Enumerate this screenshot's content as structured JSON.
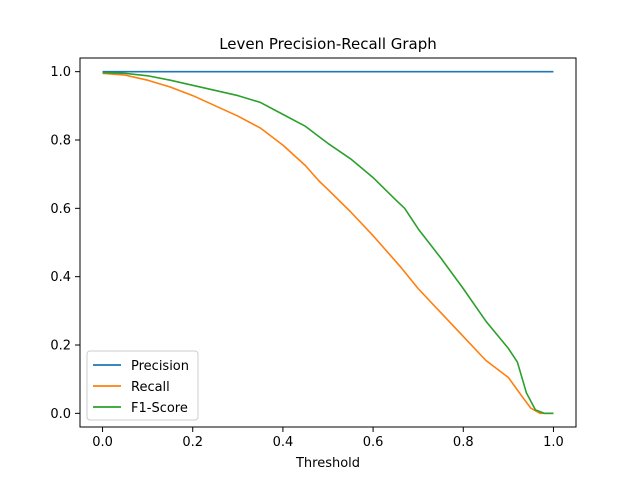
{
  "chart_data": {
    "type": "line",
    "title": "Leven Precision-Recall Graph",
    "xlabel": "Threshold",
    "ylabel": "",
    "xlim": [
      -0.05,
      1.05
    ],
    "ylim": [
      -0.04,
      1.04
    ],
    "xticks": [
      0.0,
      0.2,
      0.4,
      0.6,
      0.8,
      1.0
    ],
    "xtick_labels": [
      "0.0",
      "0.2",
      "0.4",
      "0.6",
      "0.8",
      "1.0"
    ],
    "yticks": [
      0.0,
      0.2,
      0.4,
      0.6,
      0.8,
      1.0
    ],
    "ytick_labels": [
      "0.0",
      "0.2",
      "0.4",
      "0.6",
      "0.8",
      "1.0"
    ],
    "grid": false,
    "legend_position": "lower-left",
    "series": [
      {
        "name": "Precision",
        "color": "#1f77b4",
        "x": [
          0.0,
          0.2,
          0.4,
          0.6,
          0.8,
          1.0
        ],
        "y": [
          1.0,
          1.0,
          1.0,
          1.0,
          1.0,
          1.0
        ]
      },
      {
        "name": "Recall",
        "color": "#ff7f0e",
        "x": [
          0.0,
          0.05,
          0.1,
          0.15,
          0.2,
          0.25,
          0.3,
          0.35,
          0.4,
          0.45,
          0.48,
          0.5,
          0.55,
          0.6,
          0.65,
          0.66,
          0.7,
          0.75,
          0.8,
          0.85,
          0.9,
          0.93,
          0.95,
          0.97,
          1.0
        ],
        "y": [
          0.995,
          0.99,
          0.975,
          0.955,
          0.93,
          0.9,
          0.87,
          0.835,
          0.785,
          0.725,
          0.68,
          0.655,
          0.59,
          0.52,
          0.445,
          0.43,
          0.365,
          0.295,
          0.225,
          0.155,
          0.105,
          0.05,
          0.015,
          0.0,
          0.0
        ]
      },
      {
        "name": "F1-Score",
        "color": "#2ca02c",
        "x": [
          0.0,
          0.05,
          0.1,
          0.15,
          0.2,
          0.25,
          0.3,
          0.35,
          0.4,
          0.45,
          0.48,
          0.5,
          0.55,
          0.6,
          0.65,
          0.67,
          0.7,
          0.75,
          0.8,
          0.85,
          0.9,
          0.92,
          0.94,
          0.96,
          0.98,
          1.0
        ],
        "y": [
          0.997,
          0.995,
          0.988,
          0.975,
          0.96,
          0.945,
          0.93,
          0.91,
          0.875,
          0.84,
          0.81,
          0.79,
          0.745,
          0.69,
          0.625,
          0.6,
          0.54,
          0.455,
          0.365,
          0.27,
          0.19,
          0.15,
          0.06,
          0.01,
          0.0,
          0.0
        ]
      }
    ]
  }
}
